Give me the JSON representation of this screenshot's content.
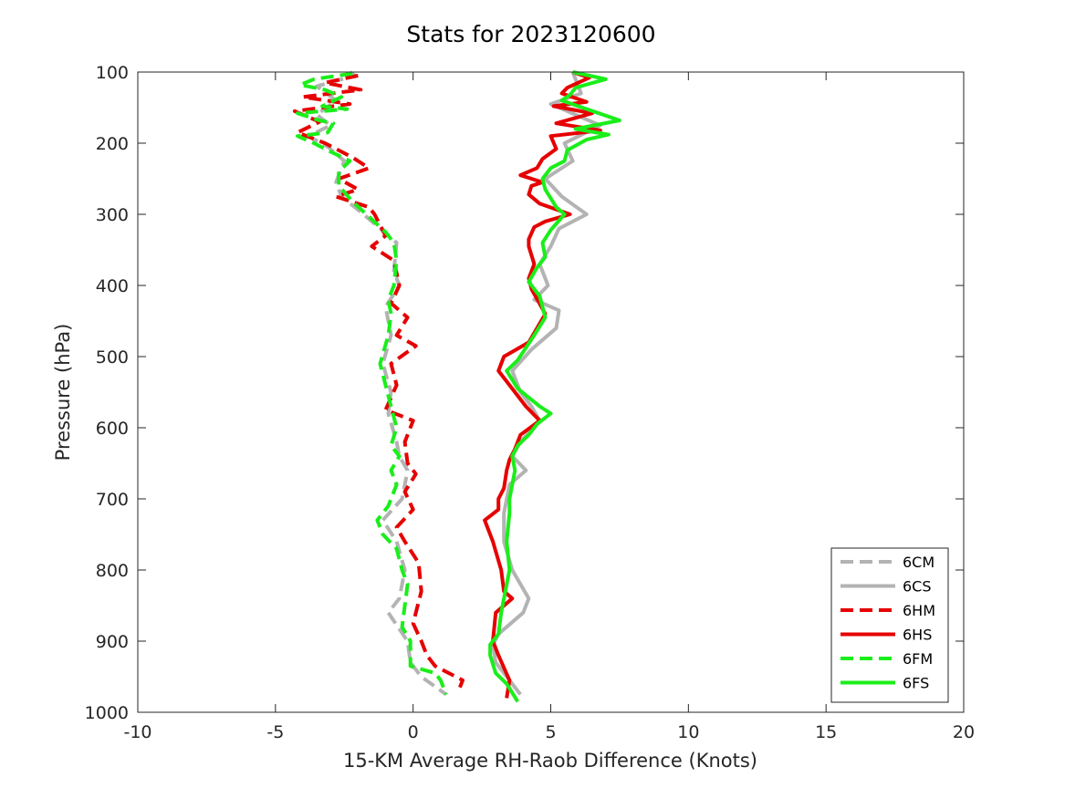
{
  "chart_data": {
    "type": "line",
    "title": "Stats for 2023120600",
    "xlabel": "15-KM Average RH-Raob Difference (Knots)",
    "ylabel": "Pressure (hPa)",
    "xlim": [
      -10,
      20
    ],
    "ylim": [
      100,
      1000
    ],
    "y_reversed": true,
    "grid": false,
    "legend_position": "bottom-right",
    "x_ticks": [
      "-10",
      "-5",
      "0",
      "5",
      "10",
      "15",
      "20"
    ],
    "y_ticks": [
      "100",
      "200",
      "300",
      "400",
      "500",
      "600",
      "700",
      "800",
      "900",
      "1000"
    ],
    "series": [
      {
        "name": "6CM",
        "color": "#b3b3b3",
        "dash": "dashed",
        "points": [
          [
            -2.3,
            100
          ],
          [
            -2.1,
            105
          ],
          [
            -3.5,
            120
          ],
          [
            -2.8,
            140
          ],
          [
            -3.5,
            160
          ],
          [
            -3.0,
            175
          ],
          [
            -3.8,
            190
          ],
          [
            -3.1,
            205
          ],
          [
            -2.5,
            225
          ],
          [
            -2.8,
            255
          ],
          [
            -2.6,
            275
          ],
          [
            -1.8,
            300
          ],
          [
            -1.2,
            320
          ],
          [
            -0.6,
            340
          ],
          [
            -0.7,
            380
          ],
          [
            -0.5,
            400
          ],
          [
            -1.0,
            430
          ],
          [
            -0.8,
            470
          ],
          [
            -1.1,
            510
          ],
          [
            -0.8,
            550
          ],
          [
            -0.9,
            580
          ],
          [
            -0.6,
            620
          ],
          [
            -0.5,
            640
          ],
          [
            -0.2,
            660
          ],
          [
            -0.4,
            700
          ],
          [
            -1.1,
            730
          ],
          [
            -0.6,
            760
          ],
          [
            -0.3,
            800
          ],
          [
            -0.5,
            840
          ],
          [
            -0.9,
            860
          ],
          [
            -0.2,
            900
          ],
          [
            -0.1,
            930
          ],
          [
            0.3,
            950
          ],
          [
            1.2,
            975
          ]
        ]
      },
      {
        "name": "6CS",
        "color": "#b3b3b3",
        "dash": "solid",
        "points": [
          [
            5.8,
            100
          ],
          [
            6.1,
            130
          ],
          [
            5.0,
            145
          ],
          [
            6.8,
            175
          ],
          [
            5.5,
            200
          ],
          [
            5.8,
            225
          ],
          [
            4.8,
            250
          ],
          [
            5.4,
            275
          ],
          [
            6.3,
            300
          ],
          [
            5.3,
            320
          ],
          [
            5.0,
            345
          ],
          [
            4.6,
            370
          ],
          [
            4.9,
            400
          ],
          [
            4.4,
            420
          ],
          [
            5.3,
            435
          ],
          [
            5.2,
            460
          ],
          [
            4.3,
            490
          ],
          [
            3.6,
            520
          ],
          [
            3.9,
            550
          ],
          [
            4.3,
            570
          ],
          [
            4.6,
            590
          ],
          [
            3.9,
            620
          ],
          [
            3.6,
            640
          ],
          [
            4.1,
            660
          ],
          [
            3.5,
            680
          ],
          [
            3.3,
            720
          ],
          [
            3.3,
            760
          ],
          [
            3.6,
            800
          ],
          [
            4.2,
            840
          ],
          [
            4.0,
            860
          ],
          [
            3.1,
            890
          ],
          [
            2.9,
            905
          ],
          [
            3.0,
            930
          ],
          [
            3.5,
            955
          ],
          [
            3.9,
            975
          ]
        ]
      },
      {
        "name": "6HM",
        "color": "#e60000",
        "dash": "dashed",
        "points": [
          [
            -2.0,
            105
          ],
          [
            -3.2,
            115
          ],
          [
            -1.9,
            125
          ],
          [
            -4.0,
            135
          ],
          [
            -2.3,
            145
          ],
          [
            -4.3,
            155
          ],
          [
            -3.4,
            170
          ],
          [
            -4.2,
            185
          ],
          [
            -3.2,
            200
          ],
          [
            -2.2,
            220
          ],
          [
            -1.6,
            235
          ],
          [
            -2.7,
            250
          ],
          [
            -2.0,
            265
          ],
          [
            -2.8,
            275
          ],
          [
            -1.6,
            290
          ],
          [
            -1.4,
            300
          ],
          [
            -1.0,
            330
          ],
          [
            -1.5,
            345
          ],
          [
            -0.7,
            365
          ],
          [
            -0.5,
            400
          ],
          [
            -0.8,
            425
          ],
          [
            -0.2,
            445
          ],
          [
            -0.6,
            470
          ],
          [
            0.1,
            485
          ],
          [
            -0.8,
            510
          ],
          [
            -0.6,
            540
          ],
          [
            -1.0,
            575
          ],
          [
            0.0,
            590
          ],
          [
            -0.3,
            620
          ],
          [
            -0.2,
            650
          ],
          [
            0.1,
            665
          ],
          [
            -0.3,
            690
          ],
          [
            0.0,
            715
          ],
          [
            -0.6,
            740
          ],
          [
            -0.3,
            760
          ],
          [
            0.2,
            790
          ],
          [
            0.3,
            830
          ],
          [
            0.1,
            860
          ],
          [
            0.0,
            875
          ],
          [
            0.3,
            900
          ],
          [
            0.5,
            920
          ],
          [
            0.8,
            935
          ],
          [
            1.8,
            955
          ],
          [
            1.7,
            965
          ]
        ]
      },
      {
        "name": "6HS",
        "color": "#e60000",
        "dash": "solid",
        "points": [
          [
            5.8,
            100
          ],
          [
            6.4,
            108
          ],
          [
            5.6,
            122
          ],
          [
            5.4,
            130
          ],
          [
            6.3,
            142
          ],
          [
            5.1,
            148
          ],
          [
            6.5,
            158
          ],
          [
            5.2,
            172
          ],
          [
            6.8,
            182
          ],
          [
            5.0,
            190
          ],
          [
            5.2,
            208
          ],
          [
            4.7,
            222
          ],
          [
            4.5,
            235
          ],
          [
            3.9,
            245
          ],
          [
            4.7,
            255
          ],
          [
            4.3,
            260
          ],
          [
            4.2,
            272
          ],
          [
            4.6,
            285
          ],
          [
            5.7,
            300
          ],
          [
            4.8,
            310
          ],
          [
            4.4,
            318
          ],
          [
            4.2,
            335
          ],
          [
            4.2,
            345
          ],
          [
            4.4,
            370
          ],
          [
            4.2,
            390
          ],
          [
            4.3,
            405
          ],
          [
            4.8,
            440
          ],
          [
            4.2,
            480
          ],
          [
            3.3,
            500
          ],
          [
            3.1,
            520
          ],
          [
            3.6,
            545
          ],
          [
            4.1,
            570
          ],
          [
            4.6,
            590
          ],
          [
            3.9,
            610
          ],
          [
            3.7,
            630
          ],
          [
            3.5,
            645
          ],
          [
            3.4,
            660
          ],
          [
            3.3,
            685
          ],
          [
            3.1,
            700
          ],
          [
            3.1,
            715
          ],
          [
            2.6,
            730
          ],
          [
            2.9,
            760
          ],
          [
            3.2,
            800
          ],
          [
            3.3,
            830
          ],
          [
            3.6,
            840
          ],
          [
            3.0,
            860
          ],
          [
            2.9,
            900
          ],
          [
            3.1,
            920
          ],
          [
            3.5,
            955
          ],
          [
            3.4,
            980
          ]
        ]
      },
      {
        "name": "6FM",
        "color": "#1aee1a",
        "dash": "dashed",
        "points": [
          [
            -2.2,
            102
          ],
          [
            -3.6,
            110
          ],
          [
            -4.1,
            118
          ],
          [
            -3.2,
            125
          ],
          [
            -2.6,
            135
          ],
          [
            -3.3,
            148
          ],
          [
            -2.4,
            152
          ],
          [
            -4.2,
            158
          ],
          [
            -3.4,
            168
          ],
          [
            -2.9,
            172
          ],
          [
            -3.1,
            185
          ],
          [
            -4.2,
            190
          ],
          [
            -3.6,
            200
          ],
          [
            -3.1,
            210
          ],
          [
            -2.3,
            225
          ],
          [
            -2.7,
            240
          ],
          [
            -2.7,
            260
          ],
          [
            -2.2,
            282
          ],
          [
            -1.0,
            325
          ],
          [
            -0.7,
            340
          ],
          [
            -0.6,
            365
          ],
          [
            -0.7,
            400
          ],
          [
            -0.9,
            420
          ],
          [
            -0.8,
            440
          ],
          [
            -0.9,
            470
          ],
          [
            -1.2,
            510
          ],
          [
            -1.0,
            540
          ],
          [
            -0.8,
            570
          ],
          [
            -0.6,
            600
          ],
          [
            -0.8,
            625
          ],
          [
            -0.5,
            640
          ],
          [
            -0.8,
            660
          ],
          [
            -0.6,
            680
          ],
          [
            -0.9,
            710
          ],
          [
            -1.3,
            730
          ],
          [
            -1.1,
            750
          ],
          [
            -0.6,
            770
          ],
          [
            -0.4,
            800
          ],
          [
            -0.2,
            820
          ],
          [
            -0.3,
            850
          ],
          [
            -0.4,
            880
          ],
          [
            -0.1,
            900
          ],
          [
            -0.1,
            920
          ],
          [
            -0.1,
            935
          ],
          [
            0.8,
            945
          ],
          [
            1.0,
            955
          ],
          [
            1.2,
            975
          ]
        ]
      },
      {
        "name": "6FS",
        "color": "#1aee1a",
        "dash": "solid",
        "points": [
          [
            5.8,
            100
          ],
          [
            7.0,
            110
          ],
          [
            5.9,
            122
          ],
          [
            5.7,
            132
          ],
          [
            5.4,
            140
          ],
          [
            7.5,
            168
          ],
          [
            5.9,
            180
          ],
          [
            7.1,
            188
          ],
          [
            6.3,
            195
          ],
          [
            5.6,
            210
          ],
          [
            5.5,
            225
          ],
          [
            5.0,
            235
          ],
          [
            4.7,
            250
          ],
          [
            4.8,
            265
          ],
          [
            5.2,
            290
          ],
          [
            5.5,
            300
          ],
          [
            5.0,
            322
          ],
          [
            4.7,
            340
          ],
          [
            4.8,
            360
          ],
          [
            4.5,
            375
          ],
          [
            4.2,
            395
          ],
          [
            4.6,
            415
          ],
          [
            4.8,
            445
          ],
          [
            4.4,
            470
          ],
          [
            3.8,
            505
          ],
          [
            3.4,
            520
          ],
          [
            3.8,
            545
          ],
          [
            4.6,
            570
          ],
          [
            5.0,
            580
          ],
          [
            4.5,
            595
          ],
          [
            4.2,
            610
          ],
          [
            3.8,
            625
          ],
          [
            3.6,
            640
          ],
          [
            3.7,
            660
          ],
          [
            3.5,
            700
          ],
          [
            3.5,
            720
          ],
          [
            3.4,
            760
          ],
          [
            3.5,
            800
          ],
          [
            3.3,
            840
          ],
          [
            3.2,
            860
          ],
          [
            3.1,
            890
          ],
          [
            2.8,
            905
          ],
          [
            2.8,
            920
          ],
          [
            3.0,
            945
          ],
          [
            3.4,
            960
          ],
          [
            3.8,
            985
          ]
        ]
      }
    ]
  }
}
